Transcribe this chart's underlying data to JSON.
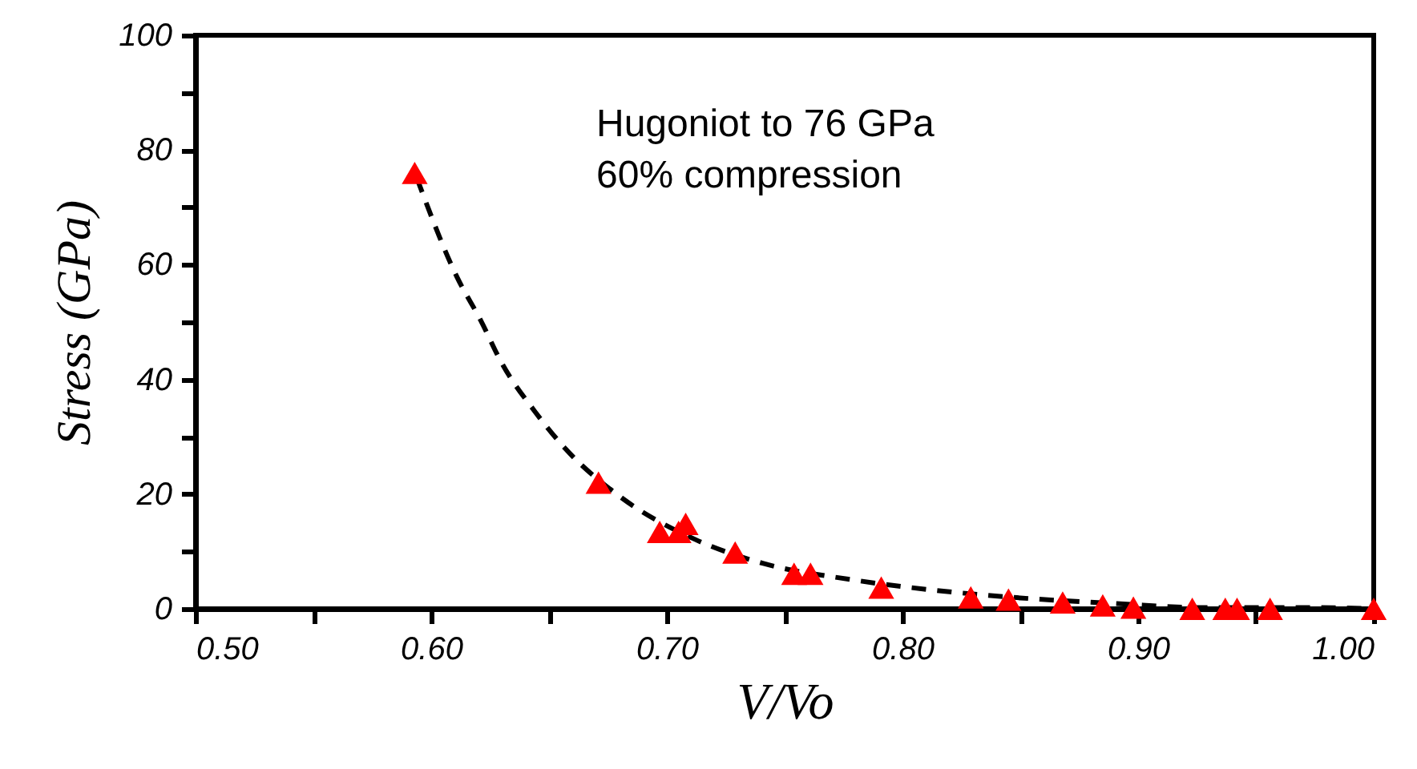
{
  "chart_data": {
    "type": "scatter",
    "xlabel": "V/Vo",
    "ylabel": "Stress (GPa)",
    "annotations": [
      "Hugoniot to 76 GPa\n60% compression"
    ],
    "xlim": [
      0.5,
      1.0
    ],
    "xticks": [
      {
        "value": 0.5,
        "label": "0.50"
      },
      {
        "value": 0.55,
        "label": null
      },
      {
        "value": 0.6,
        "label": "0.60"
      },
      {
        "value": 0.65,
        "label": null
      },
      {
        "value": 0.7,
        "label": "0.70"
      },
      {
        "value": 0.75,
        "label": null
      },
      {
        "value": 0.8,
        "label": "0.80"
      },
      {
        "value": 0.85,
        "label": null
      },
      {
        "value": 0.9,
        "label": "0.90"
      },
      {
        "value": 0.95,
        "label": null
      },
      {
        "value": 1.0,
        "label": "1.00"
      }
    ],
    "ylim": [
      0,
      100
    ],
    "yticks": [
      0,
      {
        "value": 10,
        "label": null
      },
      20,
      {
        "value": 30,
        "label": null
      },
      40,
      {
        "value": 50,
        "label": null
      },
      60,
      {
        "value": 70,
        "label": null
      },
      80,
      {
        "value": 90,
        "label": null
      },
      100
    ],
    "grid": false,
    "series": [
      {
        "color": "#ff0000",
        "marker": "triangle",
        "x": [
          0.593,
          0.671,
          0.697,
          0.705,
          0.708,
          0.729,
          0.754,
          0.761,
          0.791,
          0.829,
          0.845,
          0.868,
          0.885,
          0.898,
          0.923,
          0.937,
          0.942,
          0.956,
          1.0
        ],
        "values": [
          76,
          22,
          13.4,
          13.4,
          14.8,
          9.8,
          6.1,
          6.1,
          3.7,
          2.0,
          1.6,
          1.1,
          0.6,
          0.2,
          0,
          0,
          0,
          0,
          0
        ]
      },
      {
        "type": "line",
        "color": "#000000",
        "line_style": "dashed",
        "marker": "none",
        "x": [
          0.594,
          0.611,
          0.621,
          0.63,
          0.644,
          0.657,
          0.68,
          0.712,
          0.741,
          0.778,
          0.81,
          0.85,
          0.891,
          0.929,
          0.977,
          1.0
        ],
        "values": [
          75,
          57.8,
          50.3,
          42.8,
          34.4,
          27.9,
          19.6,
          12.1,
          7.9,
          5.1,
          3.4,
          1.9,
          0.9,
          0.2,
          0.2,
          0
        ]
      }
    ]
  }
}
